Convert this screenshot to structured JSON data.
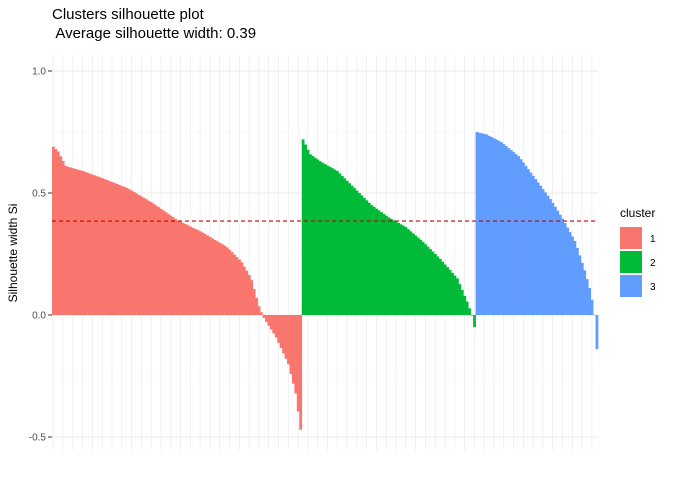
{
  "chart_data": {
    "type": "bar",
    "title": "Clusters silhouette plot",
    "subtitle": " Average silhouette width: 0.39",
    "xlabel": "",
    "ylabel": "Silhouette width Si",
    "ylim": [
      -0.52,
      1.03
    ],
    "yticks": [
      {
        "value": -0.5,
        "label": "-0.5"
      },
      {
        "value": 0.0,
        "label": "0.0"
      },
      {
        "value": 0.5,
        "label": "0.5"
      },
      {
        "value": 1.0,
        "label": "1.0"
      }
    ],
    "average_line": {
      "value": 0.385,
      "style": "dashed",
      "color": "#CC0000"
    },
    "grid": true,
    "legend": {
      "title": "cluster",
      "placement": "right",
      "entries": [
        {
          "label": "1",
          "color": "#F8766D"
        },
        {
          "label": "2",
          "color": "#00BA38"
        },
        {
          "label": "3",
          "color": "#619CFF"
        }
      ]
    },
    "series": [
      {
        "name": "1",
        "color": "#F8766D",
        "count": 102,
        "profile": [
          [
            0,
            0.69
          ],
          [
            0.02,
            0.67
          ],
          [
            0.05,
            0.61
          ],
          [
            0.12,
            0.59
          ],
          [
            0.2,
            0.56
          ],
          [
            0.3,
            0.52
          ],
          [
            0.4,
            0.46
          ],
          [
            0.5,
            0.39
          ],
          [
            0.6,
            0.34
          ],
          [
            0.7,
            0.28
          ],
          [
            0.76,
            0.22
          ],
          [
            0.8,
            0.15
          ],
          [
            0.83,
            0.04
          ],
          [
            0.85,
            -0.01
          ],
          [
            0.9,
            -0.09
          ],
          [
            0.95,
            -0.2
          ],
          [
            0.98,
            -0.32
          ],
          [
            1,
            -0.47
          ]
        ]
      },
      {
        "name": "2",
        "color": "#00BA38",
        "count": 71,
        "profile": [
          [
            0,
            0.72
          ],
          [
            0.04,
            0.66
          ],
          [
            0.1,
            0.63
          ],
          [
            0.2,
            0.59
          ],
          [
            0.3,
            0.52
          ],
          [
            0.4,
            0.45
          ],
          [
            0.5,
            0.4
          ],
          [
            0.6,
            0.36
          ],
          [
            0.7,
            0.3
          ],
          [
            0.8,
            0.23
          ],
          [
            0.9,
            0.15
          ],
          [
            0.96,
            0.05
          ],
          [
            0.985,
            0.0
          ],
          [
            1,
            -0.05
          ]
        ]
      },
      {
        "name": "3",
        "color": "#619CFF",
        "count": 50,
        "profile": [
          [
            0,
            0.75
          ],
          [
            0.08,
            0.74
          ],
          [
            0.2,
            0.71
          ],
          [
            0.35,
            0.65
          ],
          [
            0.5,
            0.55
          ],
          [
            0.62,
            0.47
          ],
          [
            0.72,
            0.39
          ],
          [
            0.82,
            0.3
          ],
          [
            0.9,
            0.18
          ],
          [
            0.95,
            0.09
          ],
          [
            0.98,
            0.0
          ],
          [
            1,
            -0.14
          ]
        ]
      }
    ]
  }
}
